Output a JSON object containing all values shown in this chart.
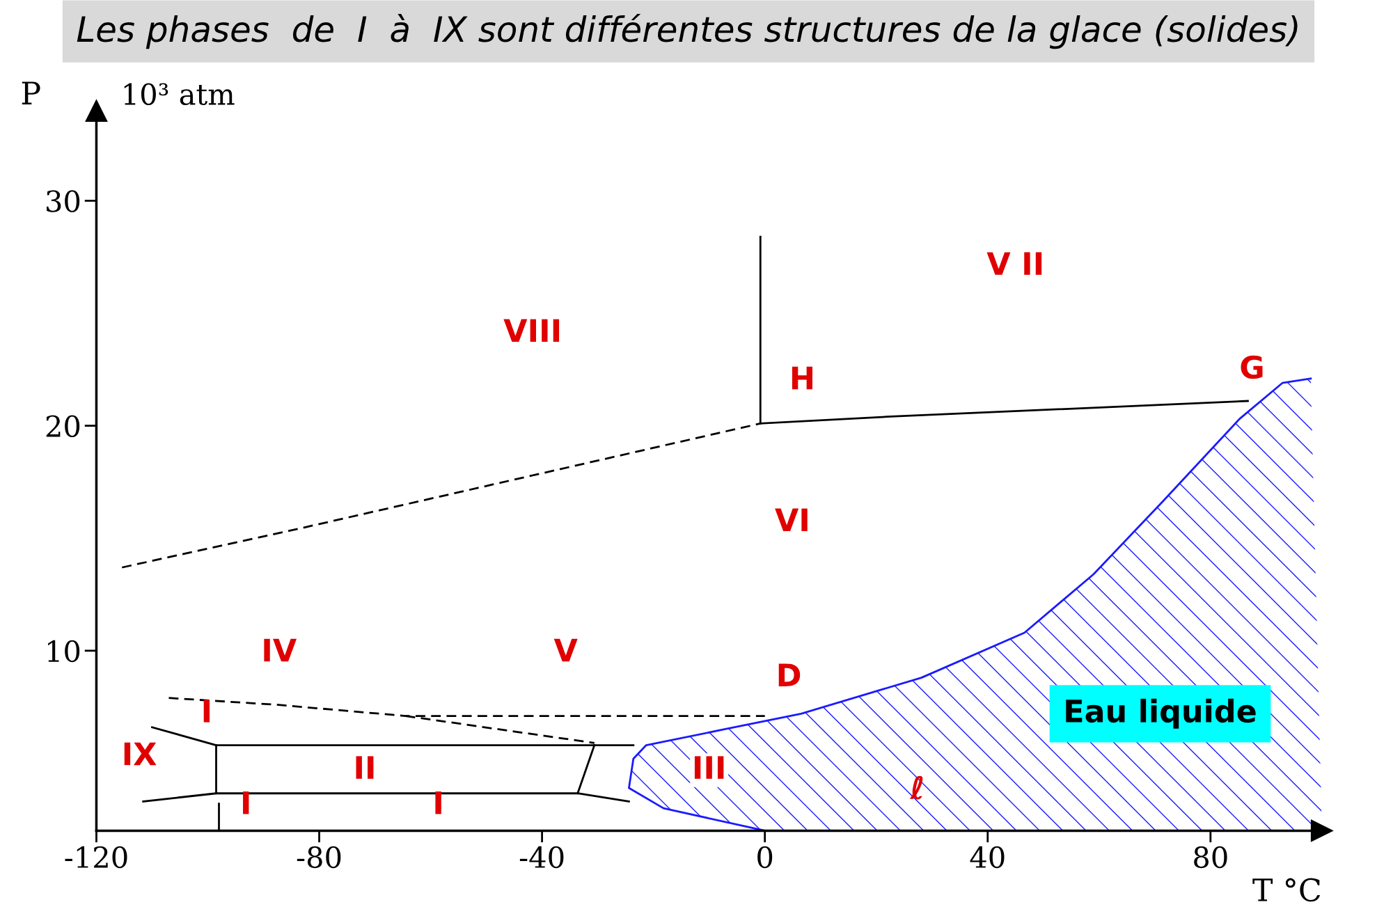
{
  "chart_data": {
    "type": "line",
    "title": "Les phases  de  I  à  IX sont différentes structures de la glace (solides)",
    "xlabel": "T °C",
    "ylabel": "P",
    "xlim": [
      -120,
      100
    ],
    "ylim": [
      2,
      34
    ],
    "xticks": [
      -120,
      -80,
      -40,
      0,
      40,
      80
    ],
    "yticks": [
      10,
      20,
      30
    ],
    "grid": false,
    "marker": "none",
    "series": [
      {
        "color": "#000000",
        "line_style": "dashed",
        "x": [
          -115.4,
          -82.3,
          -0.8
        ],
        "values": [
          13.7,
          15.5,
          20.1
        ]
      },
      {
        "color": "#000000",
        "line_style": "solid",
        "x": [
          -0.8,
          -0.8
        ],
        "values": [
          20.1,
          28.4
        ]
      },
      {
        "color": "#000000",
        "line_style": "solid",
        "x": [
          -0.8,
          21.9,
          86.7
        ],
        "values": [
          20.1,
          20.4,
          21.1
        ]
      },
      {
        "color": "#000000",
        "line_style": "dashed",
        "x": [
          -107,
          -87.7,
          -64.5,
          0
        ],
        "values": [
          7.9,
          7.6,
          7.1,
          7.1
        ]
      },
      {
        "color": "#000000",
        "line_style": "dashed",
        "x": [
          -64.5,
          -30.6
        ],
        "values": [
          7.1,
          5.9
        ]
      },
      {
        "color": "#000000",
        "line_style": "solid",
        "x": [
          -110,
          -98.5,
          -30.6,
          -23.6
        ],
        "values": [
          6.6,
          5.8,
          5.8,
          5.8
        ]
      },
      {
        "color": "#000000",
        "line_style": "solid",
        "x": [
          -111.6,
          -98.5,
          -33.6,
          -24.4
        ],
        "values": [
          3.3,
          3.66,
          3.66,
          3.3
        ]
      },
      {
        "color": "#000000",
        "line_style": "solid",
        "x": [
          -98.5,
          -98.5
        ],
        "values": [
          5.8,
          3.66
        ]
      },
      {
        "color": "#000000",
        "line_style": "solid",
        "x": [
          -30.6,
          -33.6
        ],
        "values": [
          5.8,
          3.66
        ]
      },
      {
        "color": "#000000",
        "line_style": "solid",
        "x": [
          -98,
          -98
        ],
        "values": [
          3.2,
          2.0
        ]
      },
      {
        "color": "#1a1aff",
        "line_style": "solid",
        "x": [
          0,
          -18.2,
          -24.4,
          -23.6,
          -21.3,
          -7.4,
          6.5,
          28.1,
          46.6,
          59.0,
          71.3,
          85.2,
          92.9,
          98.0
        ],
        "values": [
          2.0,
          3.0,
          3.9,
          5.2,
          5.8,
          6.5,
          7.2,
          8.8,
          10.8,
          13.4,
          16.6,
          20.3,
          21.9,
          22.1
        ]
      }
    ],
    "annotations": [
      "10³ atm",
      "VIII",
      "V II",
      "VI",
      "H",
      "G",
      "D",
      "IV",
      "V",
      "III",
      "II",
      "I",
      "IX",
      "I",
      "I",
      "ℓ",
      "Eau liquide"
    ]
  }
}
